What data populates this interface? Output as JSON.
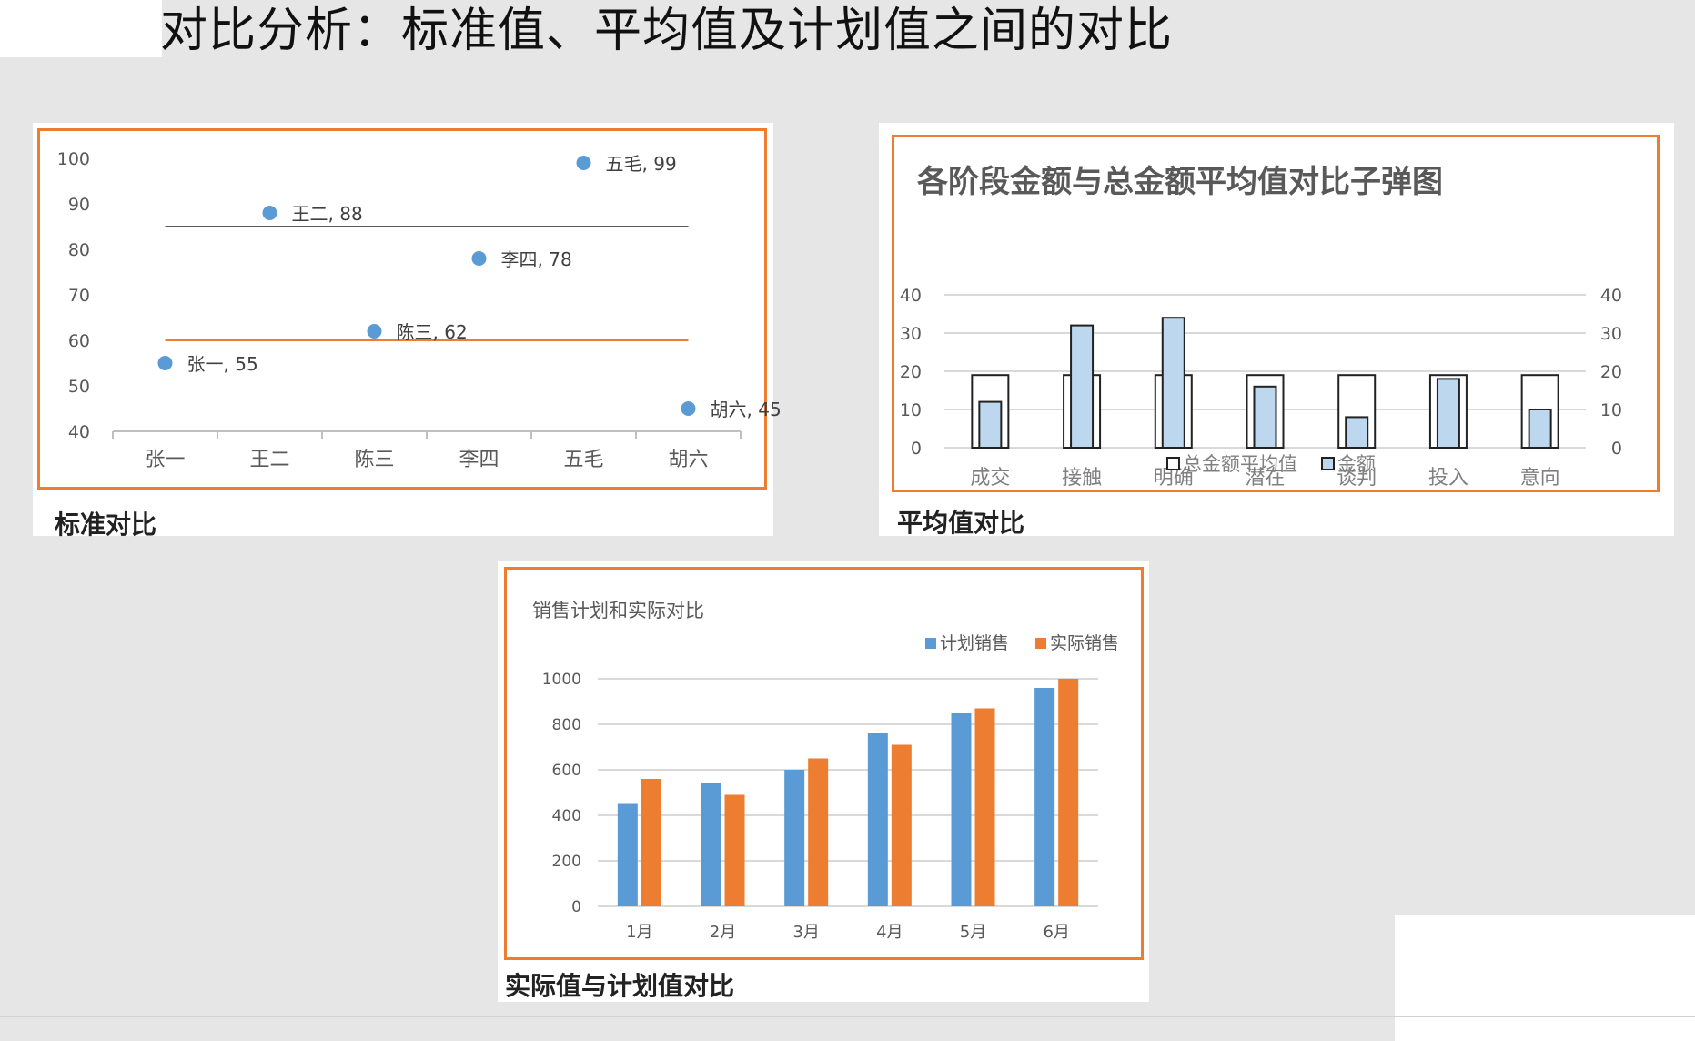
{
  "page": {
    "title": "对比分析：标准值、平均值及计划值之间的对比"
  },
  "panels": {
    "standard": {
      "caption": "标准对比"
    },
    "average": {
      "caption": "平均值对比"
    },
    "plan": {
      "caption": "实际值与计划值对比"
    }
  },
  "colors": {
    "blue": "#5b9bd5",
    "orange": "#ed7d31",
    "light_blue": "#bdd7ee",
    "frame": "#ed7d31"
  },
  "chart_data": [
    {
      "type": "scatter",
      "title": "",
      "categories": [
        "张一",
        "王二",
        "陈三",
        "李四",
        "五毛",
        "胡六"
      ],
      "points": [
        {
          "label": "张一",
          "value": 55
        },
        {
          "label": "王二",
          "value": 88
        },
        {
          "label": "陈三",
          "value": 62
        },
        {
          "label": "李四",
          "value": 78
        },
        {
          "label": "五毛",
          "value": 99
        },
        {
          "label": "胡六",
          "value": 45
        }
      ],
      "reference_lines": [
        {
          "value": 85,
          "color": "#595959"
        },
        {
          "value": 60,
          "color": "#ed7d31"
        }
      ],
      "ylim": [
        40,
        100
      ],
      "yticks": [
        40,
        50,
        60,
        70,
        80,
        90,
        100
      ],
      "grid": false,
      "legend": "none"
    },
    {
      "type": "bar",
      "title": "各阶段金额与总金额平均值对比子弹图",
      "categories": [
        "成交",
        "接触",
        "明确",
        "潜在",
        "谈判",
        "投入",
        "意向"
      ],
      "series": [
        {
          "name": "总金额平均值",
          "values": [
            19,
            19,
            19,
            19,
            19,
            19,
            19
          ]
        },
        {
          "name": "金额",
          "values": [
            12,
            32,
            34,
            16,
            8,
            18,
            10
          ]
        }
      ],
      "ylim": [
        0,
        40
      ],
      "yticks": [
        0,
        10,
        20,
        30,
        40
      ],
      "grid": true,
      "legend": "bottom"
    },
    {
      "type": "bar",
      "title": "销售计划和实际对比",
      "categories": [
        "1月",
        "2月",
        "3月",
        "4月",
        "5月",
        "6月"
      ],
      "series": [
        {
          "name": "计划销售",
          "values": [
            450,
            540,
            600,
            760,
            850,
            960
          ]
        },
        {
          "name": "实际销售",
          "values": [
            560,
            490,
            650,
            710,
            870,
            1000
          ]
        }
      ],
      "ylim": [
        0,
        1000
      ],
      "yticks": [
        0,
        200,
        400,
        600,
        800,
        1000
      ],
      "grid": true,
      "legend": "top-right"
    }
  ]
}
